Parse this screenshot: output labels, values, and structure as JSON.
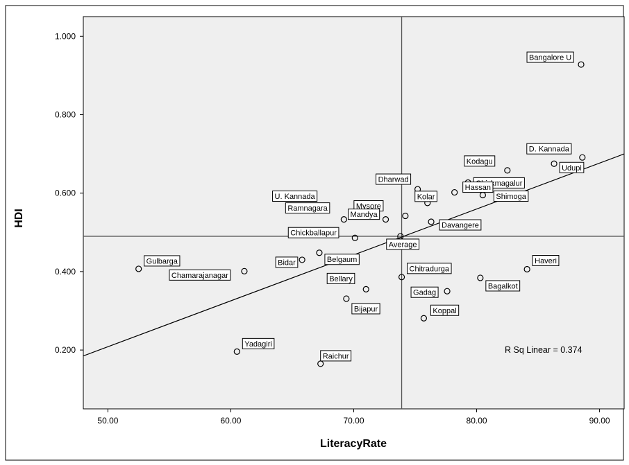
{
  "chart_data": {
    "type": "scatter",
    "xlabel": "LiteracyRate",
    "ylabel": "HDI",
    "xlim": [
      48,
      92
    ],
    "ylim": [
      0.05,
      1.05
    ],
    "xticks": [
      "50.00",
      "60.00",
      "70.00",
      "80.00",
      "90.00"
    ],
    "yticks": [
      "0.200",
      "0.400",
      "0.600",
      "0.800",
      "1.000"
    ],
    "grid": false,
    "plot_background": "#efefef",
    "points": [
      {
        "label": "Bangalore U",
        "x": 88.5,
        "y": 0.928
      },
      {
        "label": "D. Kannada",
        "x": 88.6,
        "y": 0.691
      },
      {
        "label": "Udupi",
        "x": 86.3,
        "y": 0.675
      },
      {
        "label": "Kodagu",
        "x": 82.5,
        "y": 0.658
      },
      {
        "label": "Chickmagalur",
        "x": 79.3,
        "y": 0.627
      },
      {
        "label": "Shimoga",
        "x": 80.5,
        "y": 0.595
      },
      {
        "label": "Hassan",
        "x": 78.2,
        "y": 0.602
      },
      {
        "label": "Dharwad",
        "x": 75.2,
        "y": 0.61
      },
      {
        "label": "Kolar",
        "x": 76.0,
        "y": 0.575
      },
      {
        "label": "U. Kannada",
        "x": 67.8,
        "y": 0.565
      },
      {
        "label": "Mysore",
        "x": 74.2,
        "y": 0.542
      },
      {
        "label": "Ramnagara",
        "x": 69.2,
        "y": 0.533
      },
      {
        "label": "Mandya",
        "x": 72.6,
        "y": 0.533
      },
      {
        "label": "Davangere",
        "x": 76.3,
        "y": 0.527
      },
      {
        "label": "Chickballapur",
        "x": 70.1,
        "y": 0.486
      },
      {
        "label": "Average",
        "x": 73.8,
        "y": 0.49
      },
      {
        "label": "Gulbarga",
        "x": 52.5,
        "y": 0.407
      },
      {
        "label": "Chamarajanagar",
        "x": 61.1,
        "y": 0.401
      },
      {
        "label": "Bidar",
        "x": 65.8,
        "y": 0.43
      },
      {
        "label": "Belgaum",
        "x": 67.2,
        "y": 0.448
      },
      {
        "label": "Bellary",
        "x": 71.0,
        "y": 0.355
      },
      {
        "label": "Bijapur",
        "x": 69.4,
        "y": 0.331
      },
      {
        "label": "Chitradurga",
        "x": 73.9,
        "y": 0.386
      },
      {
        "label": "Gadag",
        "x": 77.6,
        "y": 0.35
      },
      {
        "label": "Koppal",
        "x": 75.7,
        "y": 0.281
      },
      {
        "label": "Bagalkot",
        "x": 80.3,
        "y": 0.384
      },
      {
        "label": "Haveri",
        "x": 84.1,
        "y": 0.406
      },
      {
        "label": "Yadagiri",
        "x": 60.5,
        "y": 0.196
      },
      {
        "label": "Raichur",
        "x": 67.3,
        "y": 0.165
      }
    ],
    "reference_lines": {
      "x": 73.9,
      "y": 0.49
    },
    "fit_line": {
      "type": "linear",
      "x": [
        48,
        92
      ],
      "y": [
        0.185,
        0.7
      ]
    },
    "annotation": "R Sq Linear = 0.374"
  }
}
